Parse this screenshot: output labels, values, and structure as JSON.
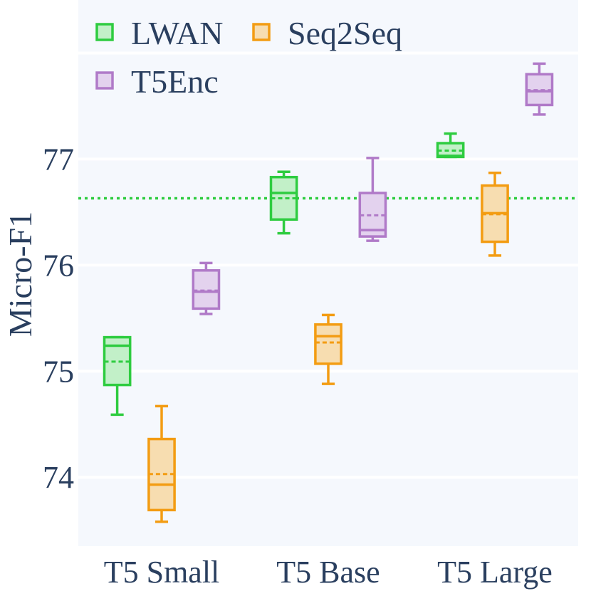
{
  "chart_data": {
    "type": "box",
    "title": "",
    "xlabel": "",
    "ylabel": "Micro-F1",
    "categories": [
      "T5 Small",
      "T5 Base",
      "T5 Large"
    ],
    "ylim": [
      73.35,
      78.5
    ],
    "yticks": [
      74,
      75,
      76,
      77
    ],
    "grid": true,
    "legend_position": "top-left",
    "reference_line": {
      "series": "LWAN",
      "value": 76.63,
      "style": "dotted"
    },
    "series": [
      {
        "name": "LWAN",
        "color": "#2ecc40",
        "fill": "#c2f0c8",
        "boxes": [
          {
            "category": "T5 Small",
            "min": 74.59,
            "q1": 74.87,
            "median": 75.24,
            "q3": 75.32,
            "max": 75.32,
            "mean": 75.09
          },
          {
            "category": "T5 Base",
            "min": 76.3,
            "q1": 76.43,
            "median": 76.68,
            "q3": 76.83,
            "max": 76.88,
            "mean": 76.63
          },
          {
            "category": "T5 Large",
            "min": 77.02,
            "q1": 77.02,
            "median": 77.03,
            "q3": 77.15,
            "max": 77.24,
            "mean": 77.08
          }
        ]
      },
      {
        "name": "Seq2Seq",
        "color": "#f39c12",
        "fill": "#f7ddb0",
        "boxes": [
          {
            "category": "T5 Small",
            "min": 73.58,
            "q1": 73.69,
            "median": 73.93,
            "q3": 74.36,
            "max": 74.67,
            "mean": 74.03
          },
          {
            "category": "T5 Base",
            "min": 74.88,
            "q1": 75.07,
            "median": 75.33,
            "q3": 75.44,
            "max": 75.53,
            "mean": 75.27
          },
          {
            "category": "T5 Large",
            "min": 76.09,
            "q1": 76.22,
            "median": 76.49,
            "q3": 76.75,
            "max": 76.87,
            "mean": 76.48
          }
        ]
      },
      {
        "name": "T5Enc",
        "color": "#b07ac8",
        "fill": "#e3d2ee",
        "boxes": [
          {
            "category": "T5 Small",
            "min": 75.54,
            "q1": 75.59,
            "median": 75.75,
            "q3": 75.95,
            "max": 76.02,
            "mean": 75.76
          },
          {
            "category": "T5 Base",
            "min": 76.23,
            "q1": 76.27,
            "median": 76.33,
            "q3": 76.68,
            "max": 77.01,
            "mean": 76.47
          },
          {
            "category": "T5 Large",
            "min": 77.42,
            "q1": 77.51,
            "median": 77.64,
            "q3": 77.8,
            "max": 77.9,
            "mean": 77.65
          }
        ]
      }
    ]
  }
}
